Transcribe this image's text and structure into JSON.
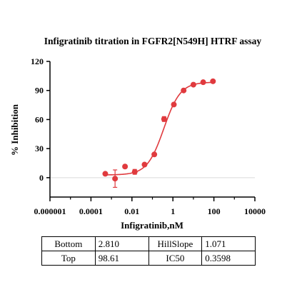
{
  "chart_data": {
    "type": "scatter",
    "title": "Infigratinib titration in FGFR2[N549H] HTRF assay",
    "xlabel": "Infigratinib,nM",
    "ylabel": "% Inhibition",
    "xscale": "log",
    "xlim": [
      1e-06,
      10000
    ],
    "ylim": [
      -20,
      120
    ],
    "xticks": [
      1e-06,
      0.0001,
      0.01,
      1,
      100,
      10000
    ],
    "xtick_labels": [
      "0.000001",
      "0.0001",
      "0.01",
      "1",
      "100",
      "10000"
    ],
    "yticks": [
      0,
      30,
      60,
      90,
      120
    ],
    "ytick_labels": [
      "0",
      "30",
      "60",
      "90",
      "120"
    ],
    "grid": false,
    "baseline": 0,
    "color": "#e03a3e",
    "series": [
      {
        "x": [
          0.0005,
          0.0015,
          0.0046,
          0.0137,
          0.0412,
          0.1235,
          0.3704,
          1.111,
          3.333,
          10,
          30,
          90
        ],
        "y": [
          4.0,
          -1.0,
          11.5,
          6.0,
          13.5,
          24.0,
          60.5,
          75.5,
          90.0,
          96.0,
          98.5,
          99.5
        ],
        "yerr": [
          0,
          9.0,
          0,
          2.5,
          0,
          0,
          2.5,
          0,
          0,
          0,
          0,
          0
        ]
      }
    ],
    "fit": {
      "model": "4PL",
      "bottom": 2.81,
      "top": 98.61,
      "hillslope": 1.071,
      "ic50": 0.3598,
      "x_range": [
        0.0005,
        90
      ]
    },
    "table": [
      [
        "Bottom",
        "2.810",
        "HillSlope",
        "1.071"
      ],
      [
        "Top",
        "98.61",
        "IC50",
        "0.3598"
      ]
    ]
  }
}
